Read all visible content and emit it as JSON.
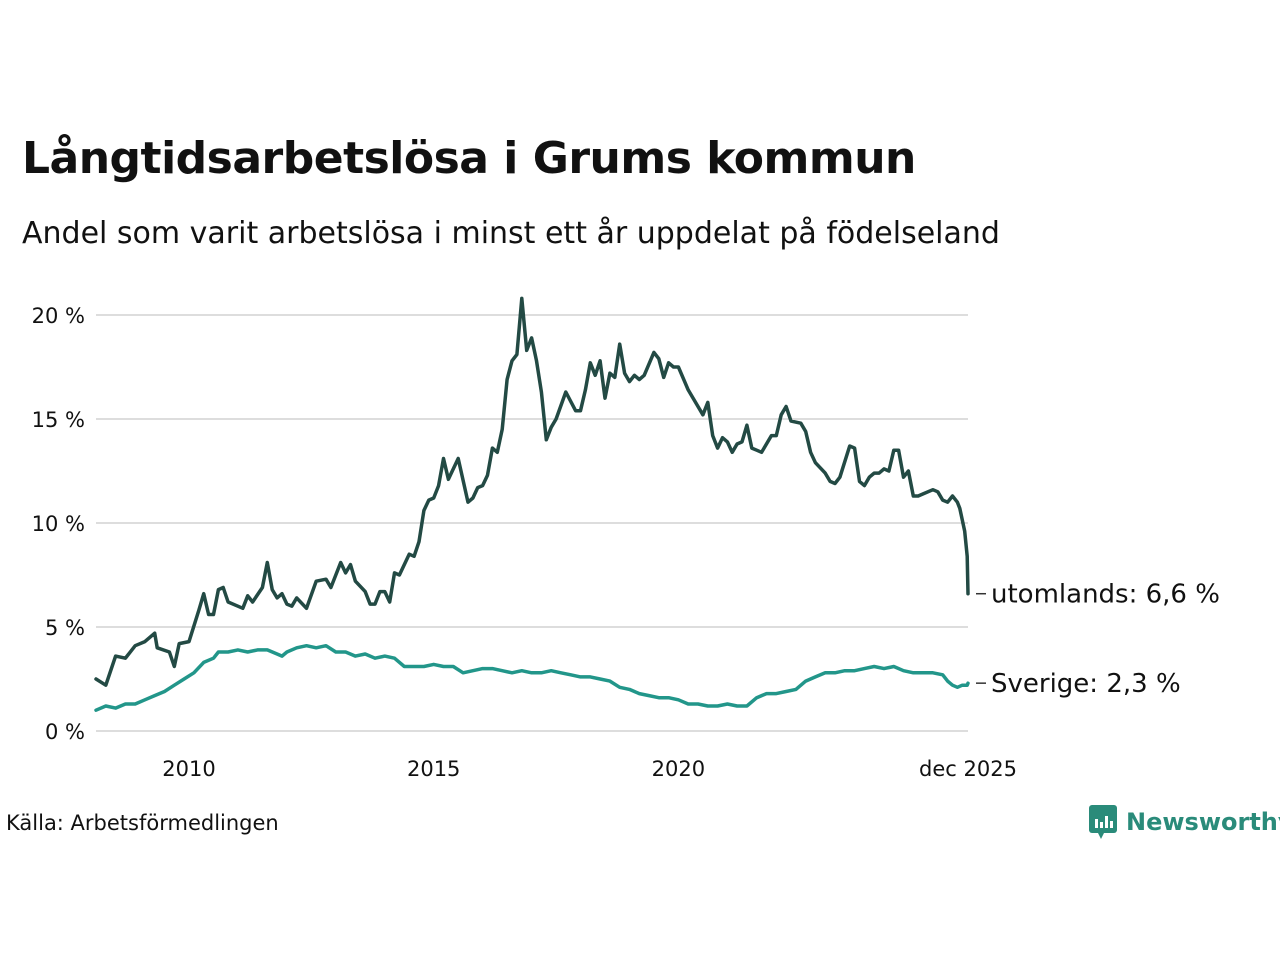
{
  "header": {
    "title": "Långtidsarbetslösa i Grums kommun",
    "subtitle": "Andel som varit arbetslösa i minst ett år uppdelat på födelseland"
  },
  "footer": {
    "source": "Källa: Arbetsförmedlingen",
    "brand": "Newsworthy"
  },
  "colors": {
    "utomlands": "#234a44",
    "sverige": "#22968a",
    "grid": "#dddddd",
    "brand": "#2a8b7a"
  },
  "chart_data": {
    "type": "line",
    "title": "Långtidsarbetslösa i Grums kommun",
    "subtitle": "Andel som varit arbetslösa i minst ett år uppdelat på födelseland",
    "xlabel": "",
    "ylabel": "",
    "xlim": [
      2008.1,
      2025.917
    ],
    "ylim": [
      0,
      21
    ],
    "y_ticks": [
      {
        "value": 0,
        "label": "0 %"
      },
      {
        "value": 5,
        "label": "5 %"
      },
      {
        "value": 10,
        "label": "10 %"
      },
      {
        "value": 15,
        "label": "15 %"
      },
      {
        "value": 20,
        "label": "20 %"
      }
    ],
    "x_ticks": [
      {
        "value": 2010,
        "label": "2010"
      },
      {
        "value": 2015,
        "label": "2015"
      },
      {
        "value": 2020,
        "label": "2020"
      },
      {
        "value": 2025.917,
        "label": "dec 2025"
      }
    ],
    "grid": true,
    "series": [
      {
        "name": "utomlands",
        "end_label": "utomlands: 6,6 %",
        "points": [
          [
            2008.1,
            2.5
          ],
          [
            2008.3,
            2.2
          ],
          [
            2008.5,
            3.6
          ],
          [
            2008.7,
            3.5
          ],
          [
            2008.9,
            4.1
          ],
          [
            2009.1,
            4.3
          ],
          [
            2009.3,
            4.7
          ],
          [
            2009.35,
            4.0
          ],
          [
            2009.6,
            3.8
          ],
          [
            2009.7,
            3.1
          ],
          [
            2009.8,
            4.2
          ],
          [
            2010.0,
            4.3
          ],
          [
            2010.2,
            5.8
          ],
          [
            2010.3,
            6.6
          ],
          [
            2010.4,
            5.6
          ],
          [
            2010.5,
            5.6
          ],
          [
            2010.6,
            6.8
          ],
          [
            2010.7,
            6.9
          ],
          [
            2010.8,
            6.2
          ],
          [
            2011.0,
            6.0
          ],
          [
            2011.1,
            5.9
          ],
          [
            2011.2,
            6.5
          ],
          [
            2011.3,
            6.2
          ],
          [
            2011.5,
            6.9
          ],
          [
            2011.6,
            8.1
          ],
          [
            2011.7,
            6.8
          ],
          [
            2011.8,
            6.4
          ],
          [
            2011.9,
            6.6
          ],
          [
            2012.0,
            6.1
          ],
          [
            2012.1,
            6.0
          ],
          [
            2012.2,
            6.4
          ],
          [
            2012.4,
            5.9
          ],
          [
            2012.6,
            7.2
          ],
          [
            2012.8,
            7.3
          ],
          [
            2012.9,
            6.9
          ],
          [
            2013.1,
            8.1
          ],
          [
            2013.2,
            7.6
          ],
          [
            2013.3,
            8.0
          ],
          [
            2013.4,
            7.2
          ],
          [
            2013.6,
            6.7
          ],
          [
            2013.7,
            6.1
          ],
          [
            2013.8,
            6.1
          ],
          [
            2013.9,
            6.7
          ],
          [
            2014.0,
            6.7
          ],
          [
            2014.1,
            6.2
          ],
          [
            2014.2,
            7.6
          ],
          [
            2014.3,
            7.5
          ],
          [
            2014.5,
            8.5
          ],
          [
            2014.6,
            8.4
          ],
          [
            2014.7,
            9.1
          ],
          [
            2014.8,
            10.6
          ],
          [
            2014.9,
            11.1
          ],
          [
            2015.0,
            11.2
          ],
          [
            2015.1,
            11.8
          ],
          [
            2015.2,
            13.1
          ],
          [
            2015.3,
            12.1
          ],
          [
            2015.5,
            13.1
          ],
          [
            2015.7,
            11.0
          ],
          [
            2015.8,
            11.2
          ],
          [
            2015.9,
            11.7
          ],
          [
            2016.0,
            11.8
          ],
          [
            2016.1,
            12.3
          ],
          [
            2016.2,
            13.6
          ],
          [
            2016.3,
            13.4
          ],
          [
            2016.4,
            14.5
          ],
          [
            2016.5,
            16.9
          ],
          [
            2016.6,
            17.8
          ],
          [
            2016.7,
            18.1
          ],
          [
            2016.8,
            20.8
          ],
          [
            2016.9,
            18.3
          ],
          [
            2017.0,
            18.9
          ],
          [
            2017.1,
            17.8
          ],
          [
            2017.2,
            16.3
          ],
          [
            2017.3,
            14.0
          ],
          [
            2017.4,
            14.6
          ],
          [
            2017.5,
            15.0
          ],
          [
            2017.7,
            16.3
          ],
          [
            2017.9,
            15.4
          ],
          [
            2018.0,
            15.4
          ],
          [
            2018.1,
            16.4
          ],
          [
            2018.2,
            17.7
          ],
          [
            2018.3,
            17.1
          ],
          [
            2018.4,
            17.8
          ],
          [
            2018.5,
            16.0
          ],
          [
            2018.6,
            17.2
          ],
          [
            2018.7,
            17.0
          ],
          [
            2018.8,
            18.6
          ],
          [
            2018.9,
            17.2
          ],
          [
            2019.0,
            16.8
          ],
          [
            2019.1,
            17.1
          ],
          [
            2019.2,
            16.9
          ],
          [
            2019.3,
            17.1
          ],
          [
            2019.5,
            18.2
          ],
          [
            2019.6,
            17.9
          ],
          [
            2019.7,
            17.0
          ],
          [
            2019.8,
            17.7
          ],
          [
            2019.9,
            17.5
          ],
          [
            2020.0,
            17.5
          ],
          [
            2020.2,
            16.4
          ],
          [
            2020.4,
            15.6
          ],
          [
            2020.5,
            15.2
          ],
          [
            2020.6,
            15.8
          ],
          [
            2020.7,
            14.2
          ],
          [
            2020.8,
            13.6
          ],
          [
            2020.9,
            14.1
          ],
          [
            2021.0,
            13.9
          ],
          [
            2021.1,
            13.4
          ],
          [
            2021.2,
            13.8
          ],
          [
            2021.3,
            13.9
          ],
          [
            2021.4,
            14.7
          ],
          [
            2021.5,
            13.6
          ],
          [
            2021.6,
            13.5
          ],
          [
            2021.7,
            13.4
          ],
          [
            2021.9,
            14.2
          ],
          [
            2022.0,
            14.2
          ],
          [
            2022.1,
            15.2
          ],
          [
            2022.2,
            15.6
          ],
          [
            2022.3,
            14.9
          ],
          [
            2022.5,
            14.8
          ],
          [
            2022.6,
            14.4
          ],
          [
            2022.7,
            13.4
          ],
          [
            2022.8,
            12.9
          ],
          [
            2023.0,
            12.4
          ],
          [
            2023.1,
            12.0
          ],
          [
            2023.2,
            11.9
          ],
          [
            2023.3,
            12.2
          ],
          [
            2023.5,
            13.7
          ],
          [
            2023.6,
            13.6
          ],
          [
            2023.7,
            12.0
          ],
          [
            2023.8,
            11.8
          ],
          [
            2023.9,
            12.2
          ],
          [
            2024.0,
            12.4
          ],
          [
            2024.1,
            12.4
          ],
          [
            2024.2,
            12.6
          ],
          [
            2024.3,
            12.5
          ],
          [
            2024.4,
            13.5
          ],
          [
            2024.5,
            13.5
          ],
          [
            2024.6,
            12.2
          ],
          [
            2024.7,
            12.5
          ],
          [
            2024.8,
            11.3
          ],
          [
            2024.9,
            11.3
          ],
          [
            2025.0,
            11.4
          ],
          [
            2025.2,
            11.6
          ],
          [
            2025.3,
            11.5
          ],
          [
            2025.4,
            11.1
          ],
          [
            2025.5,
            11.0
          ],
          [
            2025.6,
            11.3
          ],
          [
            2025.7,
            11.0
          ],
          [
            2025.75,
            10.7
          ],
          [
            2025.85,
            9.6
          ],
          [
            2025.9,
            8.4
          ],
          [
            2025.917,
            6.6
          ]
        ]
      },
      {
        "name": "Sverige",
        "end_label": "Sverige: 2,3 %",
        "points": [
          [
            2008.1,
            1.0
          ],
          [
            2008.3,
            1.2
          ],
          [
            2008.5,
            1.1
          ],
          [
            2008.7,
            1.3
          ],
          [
            2008.9,
            1.3
          ],
          [
            2009.1,
            1.5
          ],
          [
            2009.3,
            1.7
          ],
          [
            2009.5,
            1.9
          ],
          [
            2009.7,
            2.2
          ],
          [
            2009.9,
            2.5
          ],
          [
            2010.1,
            2.8
          ],
          [
            2010.3,
            3.3
          ],
          [
            2010.5,
            3.5
          ],
          [
            2010.6,
            3.8
          ],
          [
            2010.8,
            3.8
          ],
          [
            2011.0,
            3.9
          ],
          [
            2011.2,
            3.8
          ],
          [
            2011.4,
            3.9
          ],
          [
            2011.6,
            3.9
          ],
          [
            2011.8,
            3.7
          ],
          [
            2011.9,
            3.6
          ],
          [
            2012.0,
            3.8
          ],
          [
            2012.2,
            4.0
          ],
          [
            2012.4,
            4.1
          ],
          [
            2012.6,
            4.0
          ],
          [
            2012.8,
            4.1
          ],
          [
            2013.0,
            3.8
          ],
          [
            2013.2,
            3.8
          ],
          [
            2013.4,
            3.6
          ],
          [
            2013.6,
            3.7
          ],
          [
            2013.8,
            3.5
          ],
          [
            2014.0,
            3.6
          ],
          [
            2014.2,
            3.5
          ],
          [
            2014.4,
            3.1
          ],
          [
            2014.6,
            3.1
          ],
          [
            2014.8,
            3.1
          ],
          [
            2015.0,
            3.2
          ],
          [
            2015.2,
            3.1
          ],
          [
            2015.4,
            3.1
          ],
          [
            2015.6,
            2.8
          ],
          [
            2015.8,
            2.9
          ],
          [
            2016.0,
            3.0
          ],
          [
            2016.2,
            3.0
          ],
          [
            2016.4,
            2.9
          ],
          [
            2016.6,
            2.8
          ],
          [
            2016.8,
            2.9
          ],
          [
            2017.0,
            2.8
          ],
          [
            2017.2,
            2.8
          ],
          [
            2017.4,
            2.9
          ],
          [
            2017.6,
            2.8
          ],
          [
            2017.8,
            2.7
          ],
          [
            2018.0,
            2.6
          ],
          [
            2018.2,
            2.6
          ],
          [
            2018.4,
            2.5
          ],
          [
            2018.6,
            2.4
          ],
          [
            2018.8,
            2.1
          ],
          [
            2019.0,
            2.0
          ],
          [
            2019.2,
            1.8
          ],
          [
            2019.4,
            1.7
          ],
          [
            2019.6,
            1.6
          ],
          [
            2019.8,
            1.6
          ],
          [
            2020.0,
            1.5
          ],
          [
            2020.2,
            1.3
          ],
          [
            2020.4,
            1.3
          ],
          [
            2020.6,
            1.2
          ],
          [
            2020.8,
            1.2
          ],
          [
            2021.0,
            1.3
          ],
          [
            2021.2,
            1.2
          ],
          [
            2021.4,
            1.2
          ],
          [
            2021.6,
            1.6
          ],
          [
            2021.8,
            1.8
          ],
          [
            2022.0,
            1.8
          ],
          [
            2022.2,
            1.9
          ],
          [
            2022.4,
            2.0
          ],
          [
            2022.6,
            2.4
          ],
          [
            2022.8,
            2.6
          ],
          [
            2023.0,
            2.8
          ],
          [
            2023.2,
            2.8
          ],
          [
            2023.4,
            2.9
          ],
          [
            2023.6,
            2.9
          ],
          [
            2023.8,
            3.0
          ],
          [
            2024.0,
            3.1
          ],
          [
            2024.2,
            3.0
          ],
          [
            2024.4,
            3.1
          ],
          [
            2024.6,
            2.9
          ],
          [
            2024.8,
            2.8
          ],
          [
            2025.0,
            2.8
          ],
          [
            2025.2,
            2.8
          ],
          [
            2025.4,
            2.7
          ],
          [
            2025.5,
            2.4
          ],
          [
            2025.6,
            2.2
          ],
          [
            2025.7,
            2.1
          ],
          [
            2025.8,
            2.2
          ],
          [
            2025.9,
            2.2
          ],
          [
            2025.917,
            2.3
          ]
        ]
      }
    ]
  }
}
